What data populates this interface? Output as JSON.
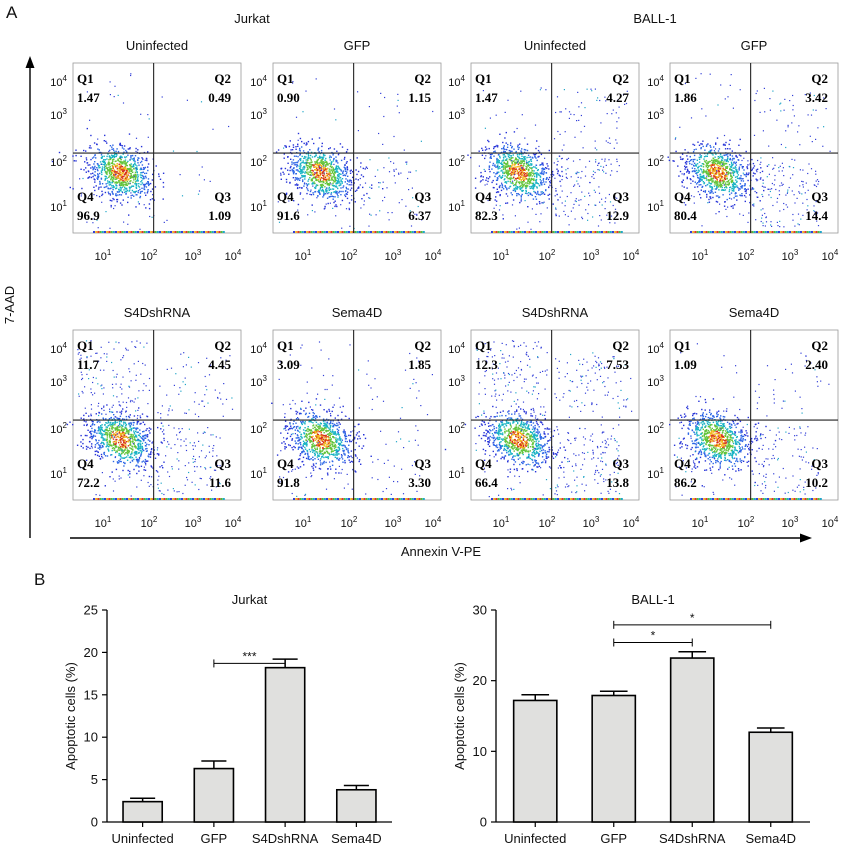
{
  "panel_labels": [
    "A",
    "B"
  ],
  "flow": {
    "cell_lines": [
      "Jurkat",
      "BALL-1"
    ],
    "y_axis_label": "7-AAD",
    "x_axis_label": "Annexin V-PE",
    "tick_base": "10",
    "tick_exponents": [
      "1",
      "2",
      "3",
      "4"
    ],
    "quadrant_names": [
      "Q1",
      "Q2",
      "Q3",
      "Q4"
    ],
    "plots": [
      {
        "line": "Jurkat",
        "condition": "Uninfected",
        "Q1": "1.47",
        "Q2": "0.49",
        "Q3": "1.09",
        "Q4": "96.9"
      },
      {
        "line": "Jurkat",
        "condition": "GFP",
        "Q1": "0.90",
        "Q2": "1.15",
        "Q3": "6.37",
        "Q4": "91.6"
      },
      {
        "line": "BALL-1",
        "condition": "Uninfected",
        "Q1": "1.47",
        "Q2": "4.27",
        "Q3": "12.9",
        "Q4": "82.3"
      },
      {
        "line": "BALL-1",
        "condition": "GFP",
        "Q1": "1.86",
        "Q2": "3.42",
        "Q3": "14.4",
        "Q4": "80.4"
      },
      {
        "line": "Jurkat",
        "condition": "S4DshRNA",
        "Q1": "11.7",
        "Q2": "4.45",
        "Q3": "11.6",
        "Q4": "72.2"
      },
      {
        "line": "Jurkat",
        "condition": "Sema4D",
        "Q1": "3.09",
        "Q2": "1.85",
        "Q3": "3.30",
        "Q4": "91.8"
      },
      {
        "line": "BALL-1",
        "condition": "S4DshRNA",
        "Q1": "12.3",
        "Q2": "7.53",
        "Q3": "13.8",
        "Q4": "66.4"
      },
      {
        "line": "BALL-1",
        "condition": "Sema4D",
        "Q1": "1.09",
        "Q2": "2.40",
        "Q3": "10.2",
        "Q4": "86.2"
      }
    ]
  },
  "chart_data": [
    {
      "type": "bar",
      "title": "Jurkat",
      "ylabel": "Apoptotic cells (%)",
      "xlabel": "",
      "categories": [
        "Uninfected",
        "GFP",
        "S4DshRNA",
        "Sema4D"
      ],
      "values": [
        2.4,
        6.3,
        18.2,
        3.8
      ],
      "errors": [
        0.4,
        0.9,
        1.0,
        0.5
      ],
      "ylim": [
        0,
        25
      ],
      "yticks": [
        0,
        5,
        10,
        15,
        20,
        25
      ],
      "significance": [
        {
          "from": 1,
          "to": 2,
          "label": "***",
          "y": 18.7
        }
      ],
      "bar_color": "#e0e0de"
    },
    {
      "type": "bar",
      "title": "BALL-1",
      "ylabel": "Apoptotic cells (%)",
      "xlabel": "",
      "categories": [
        "Uninfected",
        "GFP",
        "S4DshRNA",
        "Sema4D"
      ],
      "values": [
        17.2,
        17.9,
        23.2,
        12.7
      ],
      "errors": [
        0.8,
        0.6,
        0.9,
        0.6
      ],
      "ylim": [
        0,
        30
      ],
      "yticks": [
        0,
        10,
        20,
        30
      ],
      "significance": [
        {
          "from": 1,
          "to": 2,
          "label": "*",
          "y": 25.4
        },
        {
          "from": 1,
          "to": 3,
          "label": "*",
          "y": 27.9
        }
      ],
      "bar_color": "#e0e0de"
    }
  ]
}
